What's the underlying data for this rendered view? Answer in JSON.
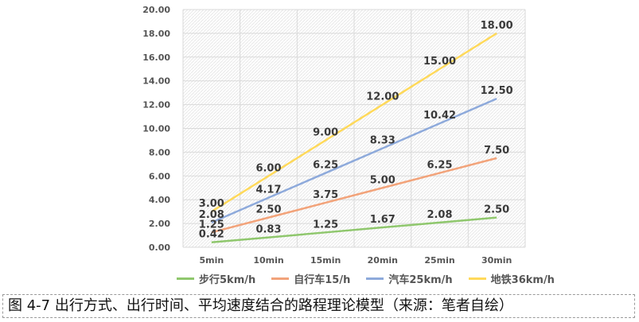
{
  "chart_data": {
    "type": "line",
    "categories": [
      "5min",
      "10min",
      "15min",
      "20min",
      "25min",
      "30min"
    ],
    "ylim": [
      0,
      20
    ],
    "yticks": [
      "0.00",
      "2.00",
      "4.00",
      "6.00",
      "8.00",
      "10.00",
      "12.00",
      "14.00",
      "16.00",
      "18.00",
      "20.00"
    ],
    "grid": true,
    "legend_position": "bottom",
    "series": [
      {
        "name": "步行5km/h",
        "color": "#8fc76d",
        "values": [
          0.42,
          0.83,
          1.25,
          1.67,
          2.08,
          2.5
        ],
        "labels": [
          "0.42",
          "0.83",
          "1.25",
          "1.67",
          "2.08",
          "2.50"
        ]
      },
      {
        "name": "自行车15/h",
        "color": "#f2a37a",
        "values": [
          1.25,
          2.5,
          3.75,
          5.0,
          6.25,
          7.5
        ],
        "labels": [
          "1.25",
          "2.50",
          "3.75",
          "5.00",
          "6.25",
          "7.50"
        ]
      },
      {
        "name": "汽车25km/h",
        "color": "#8eaadb",
        "values": [
          2.08,
          4.17,
          6.25,
          8.33,
          10.42,
          12.5
        ],
        "labels": [
          "2.08",
          "4.17",
          "6.25",
          "8.33",
          "10.42",
          "12.50"
        ]
      },
      {
        "name": "地铁36km/h",
        "color": "#ffd95a",
        "values": [
          3.0,
          6.0,
          9.0,
          12.0,
          15.0,
          18.0
        ],
        "labels": [
          "3.00",
          "6.00",
          "9.00",
          "12.00",
          "15.00",
          "18.00"
        ]
      }
    ]
  },
  "caption": "图 4-7 出行方式、出行时间、平均速度结合的路程理论模型（来源：笔者自绘）"
}
